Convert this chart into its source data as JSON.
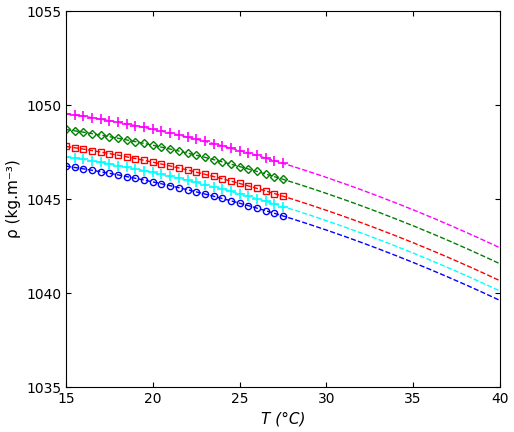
{
  "xlabel": "T (°C)",
  "ylabel": "ρ (kg.m⁻³)",
  "xlim": [
    15,
    40
  ],
  "ylim": [
    1035,
    1055
  ],
  "xticks": [
    15,
    20,
    25,
    30,
    35,
    40
  ],
  "yticks": [
    1035,
    1040,
    1045,
    1050,
    1055
  ],
  "series": [
    {
      "color": "blue",
      "marker": "o",
      "mfc": "none",
      "ms": 4.5,
      "mew": 1.0,
      "a": 1046.75,
      "b": -0.138,
      "c": -0.0059
    },
    {
      "color": "cyan",
      "marker": "+",
      "mfc": "cyan",
      "ms": 7,
      "mew": 1.2,
      "a": 1047.25,
      "b": -0.138,
      "c": -0.0059
    },
    {
      "color": "red",
      "marker": "s",
      "mfc": "none",
      "ms": 4.5,
      "mew": 1.0,
      "a": 1047.8,
      "b": -0.138,
      "c": -0.0059
    },
    {
      "color": "green",
      "marker": "D",
      "mfc": "none",
      "ms": 4.5,
      "mew": 1.0,
      "a": 1048.7,
      "b": -0.138,
      "c": -0.0059
    },
    {
      "color": "magenta",
      "marker": "+",
      "mfc": "magenta",
      "ms": 7,
      "mew": 1.2,
      "a": 1049.55,
      "b": -0.138,
      "c": -0.0059
    }
  ],
  "T_data": [
    15,
    15.5,
    16,
    16.5,
    17,
    17.5,
    18,
    18.5,
    19,
    19.5,
    20,
    20.5,
    21,
    21.5,
    22,
    22.5,
    23,
    23.5,
    24,
    24.5,
    25,
    25.5,
    26,
    26.5,
    27,
    27.5
  ],
  "T_fit_start": 15,
  "T_fit_end": 40
}
